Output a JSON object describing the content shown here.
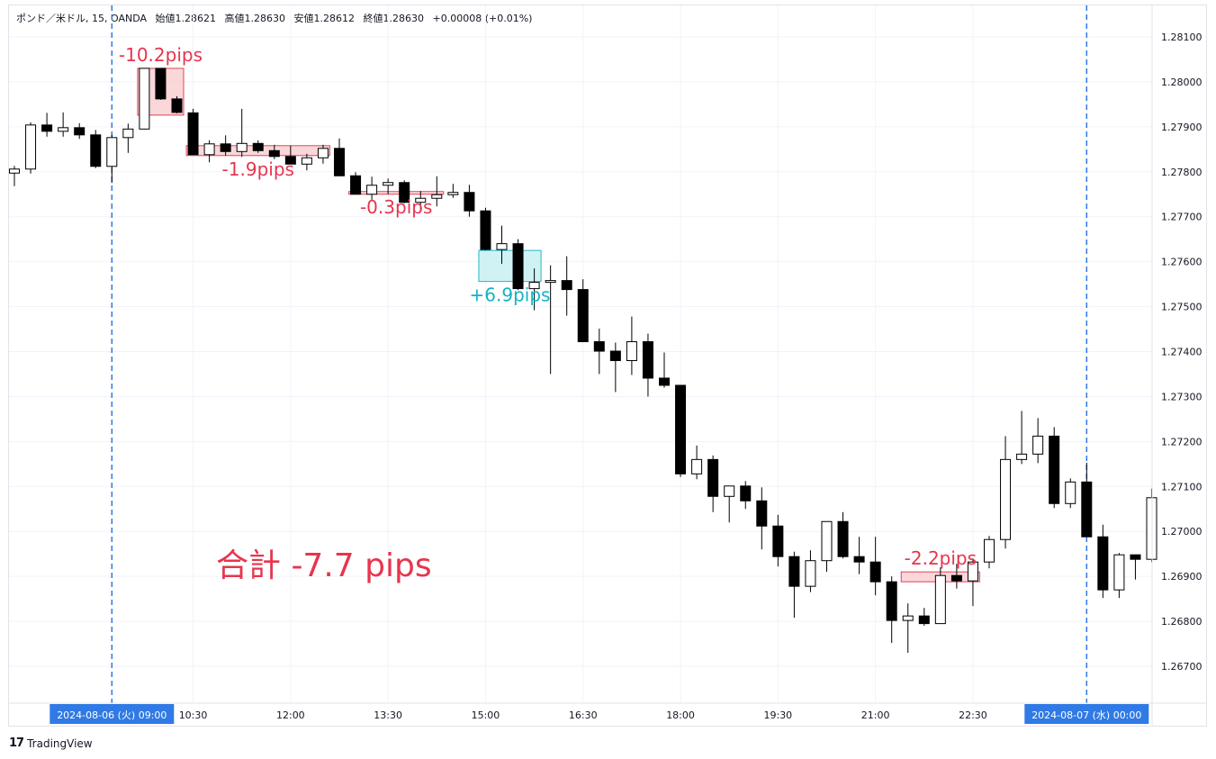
{
  "header": {
    "symbol": "ポンド／米ドル, 15, OANDA",
    "open": "始値1.28621",
    "high": "高値1.28630",
    "low": "安値1.28612",
    "close": "終値1.28630",
    "change": "+0.00008 (+0.01%)"
  },
  "footer": {
    "brand": "TradingView",
    "logo_icon": "tradingview-logo-icon"
  },
  "colors": {
    "up_body": "#ffffff",
    "down_body": "#000000",
    "wick": "#000000",
    "loss_fill": "#f8c9cc",
    "loss_stroke": "#e0455a",
    "loss_text": "#e8344e",
    "gain_fill": "#c2eef1",
    "gain_stroke": "#26b7c7",
    "gain_text": "#12b3c6",
    "session_line": "#2f7ae5",
    "time_badge_bg": "#2f7ae5",
    "grid": "#f0f3fa",
    "axis_text": "#131722"
  },
  "chart_data": {
    "type": "candlestick",
    "title": "",
    "y_ticks": [
      "1.28100",
      "1.28000",
      "1.27900",
      "1.27800",
      "1.27700",
      "1.27600",
      "1.27500",
      "1.27400",
      "1.27300",
      "1.27200",
      "1.27100",
      "1.27000",
      "1.26900",
      "1.26800",
      "1.26700"
    ],
    "ylim": [
      1.2662,
      1.2817
    ],
    "x_ticks": [
      "10:30",
      "12:00",
      "13:30",
      "15:00",
      "16:30",
      "18:00",
      "19:30",
      "21:00",
      "22:30"
    ],
    "session_badges": [
      {
        "label": "2024-08-06 (火)   09:00",
        "bar_index": 6
      },
      {
        "label": "2024-08-07 (水)   00:00",
        "bar_index": 66
      }
    ],
    "grid": true,
    "candles": [
      [
        1.27797,
        1.27813,
        1.27768,
        1.27806
      ],
      [
        1.27806,
        1.2791,
        1.27796,
        1.27904
      ],
      [
        1.27904,
        1.27931,
        1.27878,
        1.2789
      ],
      [
        1.2789,
        1.27932,
        1.27878,
        1.27898
      ],
      [
        1.27898,
        1.27908,
        1.27873,
        1.27882
      ],
      [
        1.27882,
        1.27893,
        1.27808,
        1.27812
      ],
      [
        1.27812,
        1.27882,
        1.27775,
        1.27876
      ],
      [
        1.27876,
        1.27907,
        1.27842,
        1.27895
      ],
      [
        1.27895,
        1.2803,
        1.27894,
        1.2803
      ],
      [
        1.2803,
        1.2803,
        1.2796,
        1.27962
      ],
      [
        1.27962,
        1.27968,
        1.2793,
        1.27932
      ],
      [
        1.27931,
        1.2794,
        1.27849,
        1.27838
      ],
      [
        1.27838,
        1.2787,
        1.27821,
        1.27862
      ],
      [
        1.27862,
        1.27881,
        1.27836,
        1.27845
      ],
      [
        1.27845,
        1.2794,
        1.27833,
        1.27863
      ],
      [
        1.27863,
        1.2787,
        1.27842,
        1.27847
      ],
      [
        1.27847,
        1.2786,
        1.27828,
        1.27834
      ],
      [
        1.27834,
        1.27858,
        1.2782,
        1.27817
      ],
      [
        1.27817,
        1.2784,
        1.27803,
        1.27831
      ],
      [
        1.27831,
        1.2786,
        1.27818,
        1.27852
      ],
      [
        1.27852,
        1.27874,
        1.2779,
        1.27791
      ],
      [
        1.27791,
        1.27799,
        1.2775,
        1.2775
      ],
      [
        1.2775,
        1.27789,
        1.27738,
        1.2777
      ],
      [
        1.2777,
        1.27785,
        1.2775,
        1.27776
      ],
      [
        1.27776,
        1.27781,
        1.2773,
        1.27732
      ],
      [
        1.27732,
        1.27757,
        1.2771,
        1.27741
      ],
      [
        1.27741,
        1.2779,
        1.27723,
        1.27749
      ],
      [
        1.27749,
        1.27773,
        1.27742,
        1.27754
      ],
      [
        1.27754,
        1.27771,
        1.277,
        1.27713
      ],
      [
        1.27713,
        1.2772,
        1.27625,
        1.27627
      ],
      [
        1.27627,
        1.2768,
        1.27595,
        1.2764
      ],
      [
        1.2764,
        1.2765,
        1.27537,
        1.2754
      ],
      [
        1.2754,
        1.27585,
        1.27492,
        1.27554
      ],
      [
        1.27554,
        1.27592,
        1.2735,
        1.27558
      ],
      [
        1.27558,
        1.27612,
        1.2748,
        1.27538
      ],
      [
        1.27538,
        1.27561,
        1.27422,
        1.27422
      ],
      [
        1.27422,
        1.27451,
        1.2735,
        1.27401
      ],
      [
        1.27401,
        1.2742,
        1.2731,
        1.2738
      ],
      [
        1.2738,
        1.27478,
        1.27348,
        1.27422
      ],
      [
        1.27422,
        1.2744,
        1.273,
        1.27341
      ],
      [
        1.27341,
        1.27398,
        1.2732,
        1.27325
      ],
      [
        1.27325,
        1.27325,
        1.27121,
        1.27128
      ],
      [
        1.27128,
        1.27191,
        1.27116,
        1.2716
      ],
      [
        1.2716,
        1.27169,
        1.27043,
        1.27078
      ],
      [
        1.27078,
        1.27101,
        1.2702,
        1.27101
      ],
      [
        1.27101,
        1.27112,
        1.2705,
        1.27068
      ],
      [
        1.27068,
        1.27098,
        1.2696,
        1.27012
      ],
      [
        1.27012,
        1.27037,
        1.26922,
        1.26944
      ],
      [
        1.26944,
        1.26955,
        1.26808,
        1.26878
      ],
      [
        1.26878,
        1.26958,
        1.26865,
        1.26935
      ],
      [
        1.26935,
        1.27022,
        1.2691,
        1.27022
      ],
      [
        1.27022,
        1.27043,
        1.2694,
        1.26944
      ],
      [
        1.26944,
        1.26988,
        1.26905,
        1.26932
      ],
      [
        1.26932,
        1.26988,
        1.26858,
        1.26888
      ],
      [
        1.26888,
        1.269,
        1.26752,
        1.26802
      ],
      [
        1.26802,
        1.2684,
        1.2673,
        1.26812
      ],
      [
        1.26812,
        1.2683,
        1.2679,
        1.26795
      ],
      [
        1.26795,
        1.2692,
        1.26795,
        1.26902
      ],
      [
        1.26902,
        1.26928,
        1.26873,
        1.2689
      ],
      [
        1.2689,
        1.2694,
        1.26834,
        1.26932
      ],
      [
        1.26932,
        1.2699,
        1.26918,
        1.26982
      ],
      [
        1.26982,
        1.27212,
        1.26962,
        1.2716
      ],
      [
        1.2716,
        1.27268,
        1.2715,
        1.27172
      ],
      [
        1.27172,
        1.27252,
        1.27152,
        1.27212
      ],
      [
        1.27212,
        1.27232,
        1.27052,
        1.27062
      ],
      [
        1.27062,
        1.27118,
        1.27052,
        1.2711
      ],
      [
        1.2711,
        1.27153,
        1.26992,
        1.26988
      ],
      [
        1.26988,
        1.27015,
        1.26852,
        1.2687
      ],
      [
        1.2687,
        1.26952,
        1.26852,
        1.26948
      ],
      [
        1.26948,
        1.26948,
        1.26893,
        1.26938
      ],
      [
        1.26938,
        1.27095,
        1.26932,
        1.27075
      ]
    ],
    "trades": [
      {
        "label": "-10.2pips",
        "result": "loss",
        "start_bar": 8,
        "end_bar": 10,
        "price_top": 1.2803,
        "price_bottom": 1.27926,
        "label_pos": "above"
      },
      {
        "label": "-1.9pips",
        "result": "loss",
        "start_bar": 11,
        "end_bar": 19,
        "price_top": 1.27858,
        "price_bottom": 1.27836,
        "label_pos": "below"
      },
      {
        "label": "-0.3pips",
        "result": "loss",
        "start_bar": 21,
        "end_bar": 26,
        "price_top": 1.27756,
        "price_bottom": 1.27751,
        "label_pos": "below"
      },
      {
        "label": "+6.9pips",
        "result": "gain",
        "start_bar": 29,
        "end_bar": 32,
        "price_top": 1.27625,
        "price_bottom": 1.27556,
        "label_pos": "below"
      },
      {
        "label": "-2.2pips",
        "result": "loss",
        "start_bar": 55,
        "end_bar": 59,
        "price_top": 1.2691,
        "price_bottom": 1.26888,
        "label_pos": "above"
      }
    ],
    "total_annotation": "合計 -7.7 pips"
  }
}
